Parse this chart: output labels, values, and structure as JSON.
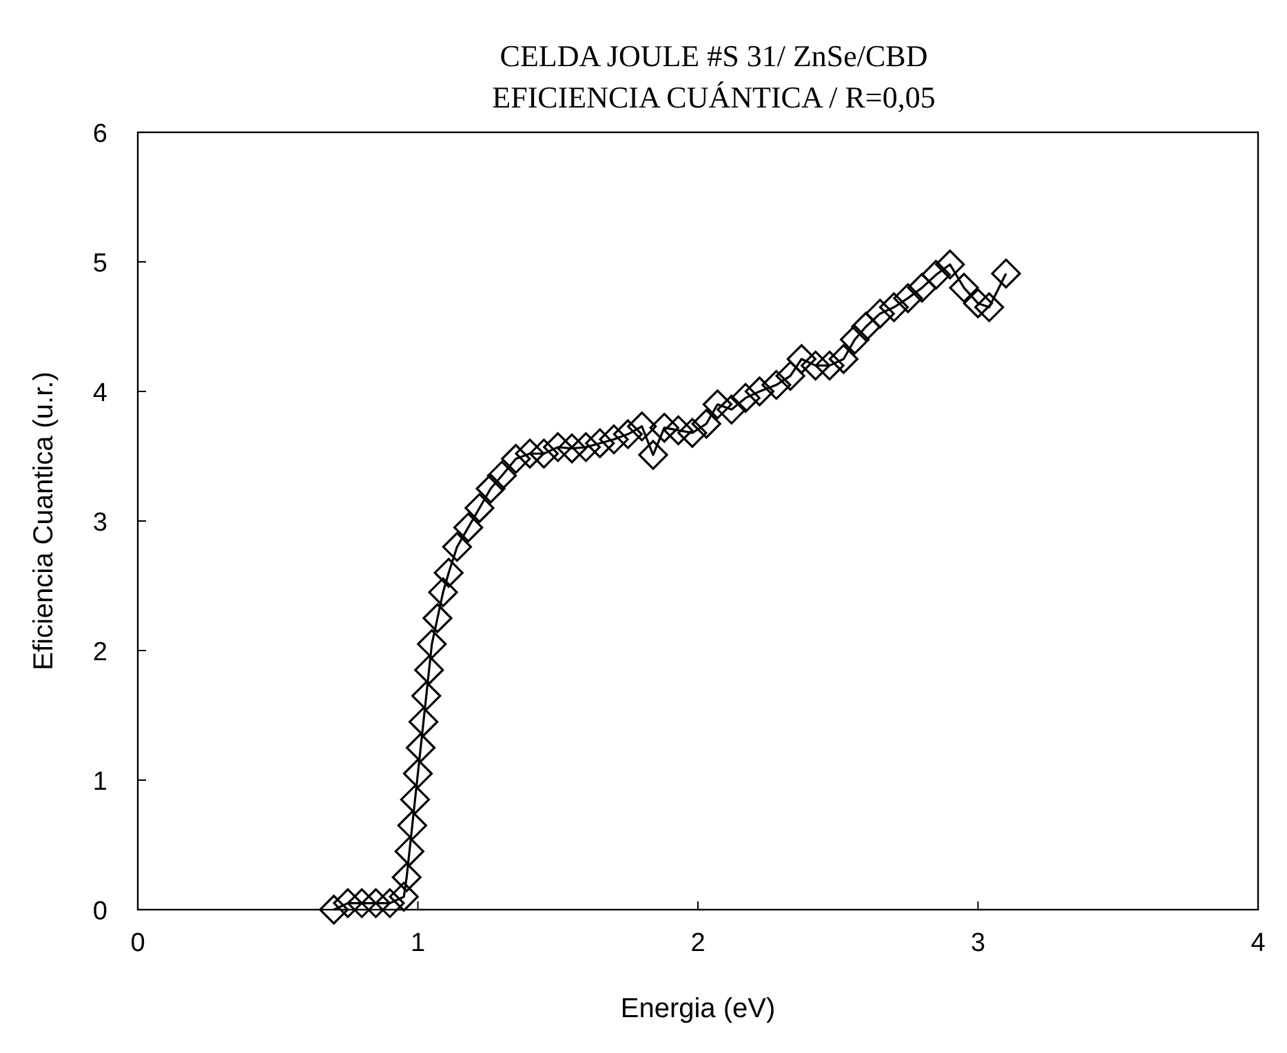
{
  "chart_data": {
    "type": "line",
    "title": "CELDA JOULE #S 31/ ZnSe/CBD",
    "subtitle": "EFICIENCIA CUÁNTICA / R=0,05",
    "xlabel": "Energia (eV)",
    "ylabel": "Eficiencia Cuantica (u.r.)",
    "x": [
      0.7,
      0.75,
      0.8,
      0.85,
      0.9,
      0.95,
      0.96,
      0.97,
      0.98,
      0.99,
      1.0,
      1.01,
      1.02,
      1.03,
      1.04,
      1.05,
      1.07,
      1.09,
      1.11,
      1.14,
      1.18,
      1.22,
      1.26,
      1.3,
      1.35,
      1.4,
      1.45,
      1.5,
      1.55,
      1.6,
      1.65,
      1.7,
      1.75,
      1.8,
      1.84,
      1.88,
      1.93,
      1.98,
      2.03,
      2.07,
      2.12,
      2.17,
      2.22,
      2.28,
      2.33,
      2.37,
      2.42,
      2.47,
      2.52,
      2.56,
      2.6,
      2.65,
      2.7,
      2.75,
      2.8,
      2.85,
      2.9,
      2.95,
      3.0,
      3.04,
      3.1
    ],
    "series": [
      {
        "color": "#000000",
        "values": [
          0,
          0.05,
          0.05,
          0.05,
          0.05,
          0.1,
          0.25,
          0.45,
          0.65,
          0.85,
          1.05,
          1.25,
          1.45,
          1.65,
          1.85,
          2.05,
          2.25,
          2.45,
          2.6,
          2.8,
          2.95,
          3.1,
          3.25,
          3.35,
          3.48,
          3.52,
          3.52,
          3.57,
          3.56,
          3.57,
          3.6,
          3.63,
          3.67,
          3.73,
          3.51,
          3.72,
          3.7,
          3.68,
          3.75,
          3.9,
          3.86,
          3.95,
          4.0,
          4.05,
          4.12,
          4.25,
          4.2,
          4.2,
          4.25,
          4.4,
          4.5,
          4.6,
          4.65,
          4.72,
          4.8,
          4.9,
          4.98,
          4.8,
          4.68,
          4.65,
          4.91
        ]
      }
    ],
    "xlim": [
      0,
      4
    ],
    "xticks": [
      0,
      1,
      2,
      3,
      4
    ],
    "ylim": [
      0,
      6
    ],
    "yticks": [
      0,
      1,
      2,
      3,
      4,
      5,
      6
    ],
    "grid": false,
    "marker": "diamond",
    "line_style": "solid"
  }
}
